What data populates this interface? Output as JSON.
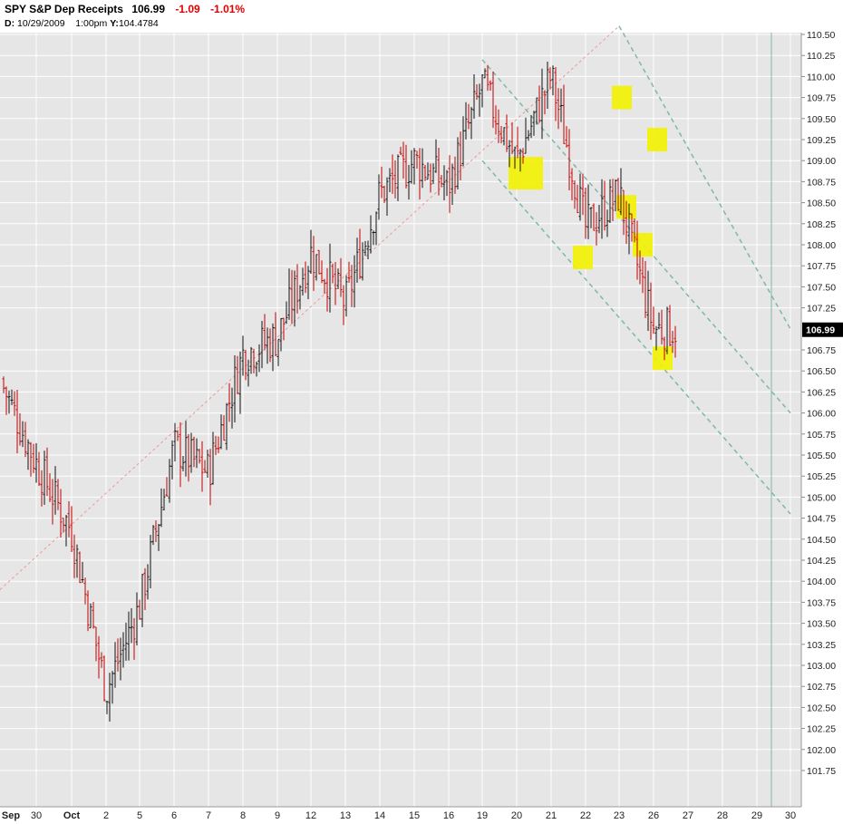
{
  "header": {
    "symbol": "SPY",
    "name": "S&P Dep Receipts",
    "last": "106.99",
    "change": "-1.09",
    "change_pct": "-1.01%",
    "detail_prefix": "D:",
    "date": "10/29/2009",
    "time": "1:00pm",
    "y_prefix": "Y:",
    "y_value": "104.4784"
  },
  "colors": {
    "up_bar": "#111111",
    "down_bar": "#c00000",
    "plot_bg": "#e6e6e6",
    "grid": "#ffffff",
    "trend_up": "#e89a9a",
    "channel": "#7fb8a6",
    "highlight": "#f2f200",
    "negative_text": "#e00000"
  },
  "chart_data": {
    "type": "ohlc",
    "title": "SPY S&P Dep Receipts",
    "interval": "intraday",
    "ylim": [
      101.6,
      110.6
    ],
    "y_ticks": [
      "110.50",
      "110.25",
      "110.00",
      "109.75",
      "109.50",
      "109.25",
      "109.00",
      "108.75",
      "108.50",
      "108.25",
      "108.00",
      "107.75",
      "107.50",
      "107.25",
      "106.75",
      "106.50",
      "106.25",
      "106.00",
      "105.75",
      "105.50",
      "105.25",
      "105.00",
      "104.75",
      "104.50",
      "104.25",
      "104.00",
      "103.75",
      "103.50",
      "103.25",
      "103.00",
      "102.75",
      "102.50",
      "102.25",
      "102.00",
      "101.75"
    ],
    "last_price_label": "106.99",
    "x_labels": [
      "Sep",
      "30",
      "Oct",
      "2",
      "5",
      "6",
      "7",
      "8",
      "9",
      "12",
      "13",
      "14",
      "15",
      "16",
      "19",
      "20",
      "21",
      "22",
      "23",
      "26",
      "27",
      "28",
      "29",
      "30"
    ],
    "price_path": [
      [
        "Sep 29",
        106.4
      ],
      [
        "Sep 30",
        105.4
      ],
      [
        "Oct 1",
        104.6
      ],
      [
        "Oct 2",
        102.7
      ],
      [
        "Oct 5",
        103.7
      ],
      [
        "Oct 6",
        105.6
      ],
      [
        "Oct 7",
        105.3
      ],
      [
        "Oct 8",
        106.7
      ],
      [
        "Oct 9",
        106.9
      ],
      [
        "Oct 12",
        107.9
      ],
      [
        "Oct 13",
        107.3
      ],
      [
        "Oct 14",
        108.6
      ],
      [
        "Oct 15",
        109.0
      ],
      [
        "Oct 16",
        108.7
      ],
      [
        "Oct 19",
        109.9
      ],
      [
        "Oct 20",
        109.0
      ],
      [
        "Oct 21",
        110.0
      ],
      [
        "Oct 22",
        108.2
      ],
      [
        "Oct 23",
        108.6
      ],
      [
        "Oct 26",
        107.0
      ]
    ],
    "trendlines": [
      {
        "kind": "up-trend",
        "from": [
          "Sep 29",
          103.9
        ],
        "to": [
          "Oct 23",
          110.6
        ]
      },
      {
        "kind": "channel",
        "from": [
          "Oct 23",
          110.6
        ],
        "to": [
          "Oct 30",
          107.0
        ]
      },
      {
        "kind": "channel",
        "from": [
          "Oct 19",
          110.2
        ],
        "to": [
          "Oct 30",
          106.0
        ]
      },
      {
        "kind": "channel",
        "from": [
          "Oct 19",
          109.0
        ],
        "to": [
          "Oct 30",
          104.8
        ]
      }
    ],
    "highlights": [
      {
        "date": "Oct 20",
        "price": 108.85
      },
      {
        "date": "Oct 22",
        "price": 107.85
      },
      {
        "date": "Oct 23",
        "price": 109.75
      },
      {
        "date": "Oct 23",
        "price": 108.45
      },
      {
        "date": "Oct 26",
        "price": 109.25
      },
      {
        "date": "Oct 26",
        "price": 108.0
      },
      {
        "date": "Oct 26",
        "price": 106.65
      }
    ],
    "grid": true
  }
}
